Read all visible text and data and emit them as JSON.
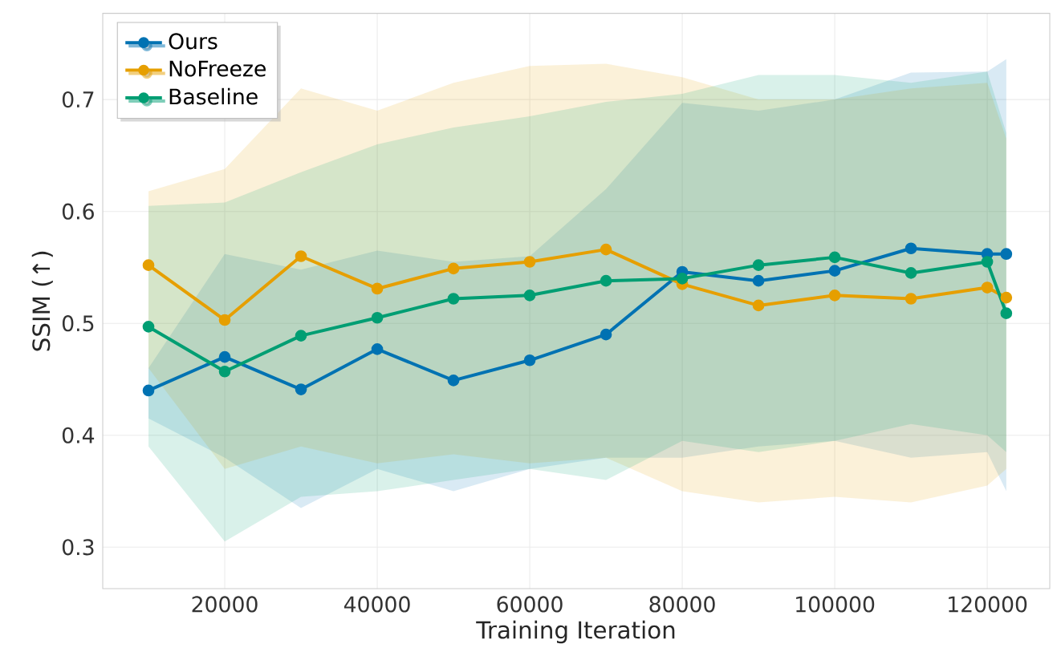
{
  "chart_data": {
    "type": "line",
    "xlabel": "Training Iteration",
    "ylabel": "SSIM (↑)",
    "x": [
      10000,
      20000,
      30000,
      40000,
      50000,
      60000,
      70000,
      80000,
      90000,
      100000,
      110000,
      120000,
      122500
    ],
    "series": [
      {
        "name": "Ours",
        "color": "#0072b2",
        "values": [
          0.44,
          0.47,
          0.441,
          0.477,
          0.449,
          0.467,
          0.49,
          0.546,
          0.538,
          0.547,
          0.567,
          0.562,
          0.562
        ],
        "lower": [
          0.415,
          0.38,
          0.335,
          0.37,
          0.35,
          0.37,
          0.38,
          0.38,
          0.39,
          0.395,
          0.38,
          0.385,
          0.35
        ],
        "upper": [
          0.46,
          0.562,
          0.548,
          0.565,
          0.555,
          0.56,
          0.62,
          0.697,
          0.69,
          0.7,
          0.724,
          0.725,
          0.736
        ]
      },
      {
        "name": "NoFreeze",
        "color": "#e69f00",
        "values": [
          0.552,
          0.503,
          0.56,
          0.531,
          0.549,
          0.555,
          0.566,
          0.535,
          0.516,
          0.525,
          0.522,
          0.532,
          0.523
        ],
        "lower": [
          0.46,
          0.37,
          0.39,
          0.375,
          0.383,
          0.375,
          0.38,
          0.35,
          0.34,
          0.345,
          0.34,
          0.355,
          0.37
        ],
        "upper": [
          0.618,
          0.638,
          0.71,
          0.69,
          0.715,
          0.73,
          0.732,
          0.72,
          0.7,
          0.7,
          0.71,
          0.715,
          0.665
        ]
      },
      {
        "name": "Baseline",
        "color": "#009e73",
        "values": [
          0.497,
          0.457,
          0.489,
          0.505,
          0.522,
          0.525,
          0.538,
          0.54,
          0.552,
          0.559,
          0.545,
          0.555,
          0.509
        ],
        "lower": [
          0.39,
          0.305,
          0.345,
          0.35,
          0.36,
          0.37,
          0.36,
          0.395,
          0.385,
          0.395,
          0.41,
          0.4,
          0.385
        ],
        "upper": [
          0.605,
          0.608,
          0.635,
          0.66,
          0.675,
          0.685,
          0.698,
          0.705,
          0.722,
          0.722,
          0.715,
          0.725,
          0.67
        ]
      }
    ],
    "xlim": [
      4000,
      128200
    ],
    "ylim": [
      0.263,
      0.777
    ],
    "xticks": [
      20000,
      40000,
      60000,
      80000,
      100000,
      120000
    ],
    "yticks": [
      0.3,
      0.4,
      0.5,
      0.6,
      0.7
    ],
    "grid": true,
    "legend": "top left",
    "marker": "circle",
    "line_style": "solid"
  }
}
